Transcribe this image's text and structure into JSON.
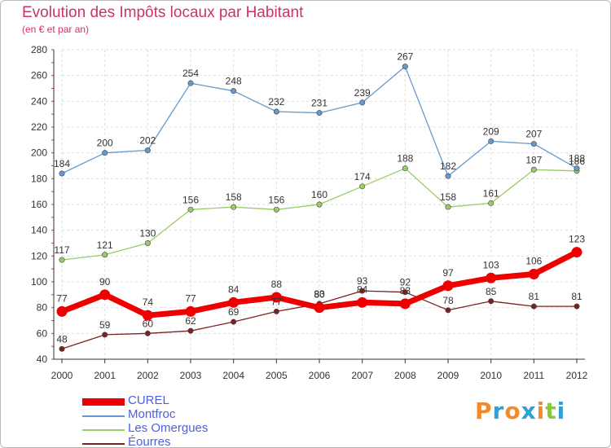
{
  "header": {
    "title": "Evolution des Impôts locaux par Habitant",
    "subtitle": "(en € et par an)"
  },
  "logo": {
    "text": "Proxiti",
    "letters": [
      "P",
      "r",
      "o",
      "x",
      "i",
      "t",
      "i"
    ],
    "colors": [
      "#f28c28",
      "#2aa3d8",
      "#f28c28",
      "#2aa3d8",
      "#f28c28",
      "#8cc63f",
      "#2aa3d8"
    ]
  },
  "chart_data": {
    "type": "line",
    "title": "Evolution des Impôts locaux par Habitant",
    "subtitle": "(en € et par an)",
    "xlabel": "",
    "ylabel": "",
    "x": [
      "2000",
      "2001",
      "2002",
      "2003",
      "2004",
      "2005",
      "2006",
      "2007",
      "2008",
      "2009",
      "2010",
      "2011",
      "2012"
    ],
    "ylim": [
      40,
      280
    ],
    "yticks": [
      40,
      60,
      80,
      100,
      120,
      140,
      160,
      180,
      200,
      220,
      240,
      260,
      280
    ],
    "grid": true,
    "legend_position": "bottom-left",
    "series": [
      {
        "name": "CUREL",
        "color": "#ee0000",
        "emphasis": true,
        "values": [
          77,
          90,
          74,
          77,
          84,
          88,
          80,
          84,
          83,
          97,
          103,
          106,
          123
        ],
        "labels": [
          "77",
          "90",
          "74",
          "77",
          "84",
          "88",
          "80",
          "84",
          "83",
          "97",
          "103",
          "106",
          "123"
        ]
      },
      {
        "name": "Montfroc",
        "color": "#6699cc",
        "emphasis": false,
        "values": [
          184,
          200,
          202,
          254,
          248,
          232,
          231,
          239,
          267,
          182,
          209,
          207,
          188
        ],
        "labels": [
          "184",
          "200",
          "202",
          "254",
          "248",
          "232",
          "231",
          "239",
          "267",
          "182",
          "209",
          "207",
          "188"
        ]
      },
      {
        "name": "Les Omergues",
        "color": "#99cc66",
        "emphasis": false,
        "values": [
          117,
          121,
          130,
          156,
          158,
          156,
          160,
          174,
          188,
          158,
          161,
          187,
          186
        ],
        "labels": [
          "117",
          "121",
          "130",
          "156",
          "158",
          "156",
          "160",
          "174",
          "188",
          "158",
          "161",
          "187",
          "186"
        ]
      },
      {
        "name": "Éourres",
        "color": "#7a2222",
        "emphasis": false,
        "values": [
          48,
          59,
          60,
          62,
          69,
          77,
          83,
          93,
          92,
          78,
          85,
          81,
          81
        ],
        "labels": [
          "48",
          "59",
          "60",
          "62",
          "69",
          "77",
          "83",
          "93",
          "92",
          "78",
          "85",
          "81",
          "81"
        ]
      }
    ]
  }
}
